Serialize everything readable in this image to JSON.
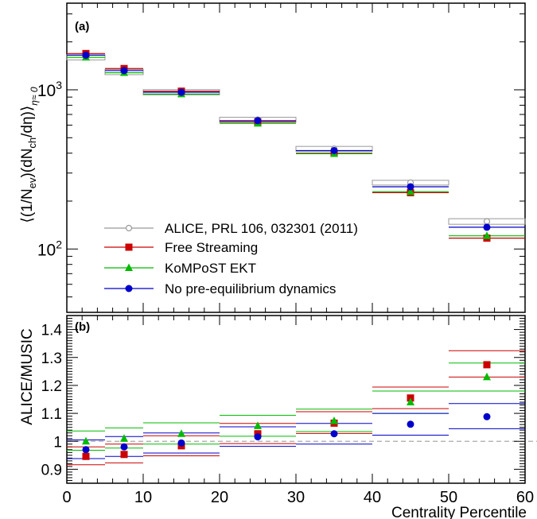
{
  "figure": {
    "colors": {
      "alice": "#999999",
      "free_streaming": "#cc0000",
      "kompost": "#00bb00",
      "no_preeq": "#0000cc",
      "reference_line": "#aaaaaa"
    }
  },
  "chart_data": [
    {
      "type": "scatter",
      "panel_label": "(a)",
      "ylabel": "⟨(1/N_ev)(dN_ch/dη)⟩_η≈0",
      "ylabel_parts": {
        "main": "⟨(1/N",
        "sub1": "ev",
        "mid": ")(dN",
        "sub2": "ch",
        "tail": "/dη)⟩",
        "sub3": "η≈ 0"
      },
      "yscale": "log",
      "ylim": [
        40,
        3500
      ],
      "xlim": [
        0,
        60
      ],
      "y_tick_labels": [
        {
          "value": 100,
          "base": "10",
          "exp": "2"
        },
        {
          "value": 1000,
          "base": "10",
          "exp": "3"
        }
      ],
      "bins": [
        [
          0,
          5
        ],
        [
          5,
          10
        ],
        [
          10,
          20
        ],
        [
          20,
          30
        ],
        [
          30,
          40
        ],
        [
          40,
          50
        ],
        [
          50,
          60
        ]
      ],
      "x": [
        2.5,
        7.5,
        15,
        25,
        35,
        45,
        55
      ],
      "series": [
        {
          "name": "ALICE, PRL 106, 032301 (2011)",
          "color": "#999999",
          "marker": "open-circle",
          "style": "box",
          "values": [
            1601,
            1294,
            966,
            649,
            426,
            261,
            149
          ],
          "errors": [
            60,
            49,
            37,
            23,
            15,
            9,
            6
          ]
        },
        {
          "name": "Free Streaming",
          "color": "#cc0000",
          "marker": "square",
          "style": "line",
          "values": [
            1690,
            1360,
            980,
            630,
            400,
            226,
            117
          ]
        },
        {
          "name": "KoMPoST EKT",
          "color": "#00bb00",
          "marker": "triangle",
          "style": "line",
          "values": [
            1600,
            1280,
            940,
            615,
            397,
            229,
            121
          ]
        },
        {
          "name": "No pre-equilibrium dynamics",
          "color": "#0000cc",
          "marker": "circle",
          "style": "line",
          "values": [
            1650,
            1320,
            965,
            640,
            415,
            246,
            137
          ]
        }
      ],
      "legend": {
        "placement": "bottom-left"
      }
    },
    {
      "type": "scatter",
      "panel_label": "(b)",
      "ylabel": "ALICE/MUSIC",
      "xlabel": "Centrality Percentile",
      "ylim": [
        0.85,
        1.45
      ],
      "xlim": [
        0,
        60
      ],
      "y_ticks": [
        "0.9",
        "1",
        "1.1",
        "1.2",
        "1.3",
        "1.4"
      ],
      "x_ticks": [
        "0",
        "10",
        "20",
        "30",
        "40",
        "50",
        "60"
      ],
      "reference_line": 1,
      "bins": [
        [
          0,
          5
        ],
        [
          5,
          10
        ],
        [
          10,
          20
        ],
        [
          20,
          30
        ],
        [
          30,
          40
        ],
        [
          40,
          50
        ],
        [
          50,
          60
        ]
      ],
      "x": [
        2.5,
        7.5,
        15,
        25,
        35,
        45,
        55
      ],
      "series": [
        {
          "name": "Free Streaming",
          "color": "#cc0000",
          "marker": "square",
          "values": [
            0.946,
            0.953,
            0.984,
            1.027,
            1.065,
            1.155,
            1.274
          ],
          "band_low": [
            0.916,
            0.923,
            0.948,
            0.992,
            1.028,
            1.117,
            1.23
          ],
          "band_high": [
            0.98,
            0.99,
            1.02,
            1.064,
            1.106,
            1.194,
            1.324
          ]
        },
        {
          "name": "KoMPoST EKT",
          "color": "#00bb00",
          "marker": "triangle",
          "values": [
            1.0,
            1.01,
            1.027,
            1.055,
            1.073,
            1.14,
            1.23
          ],
          "band_low": [
            0.968,
            0.976,
            0.99,
            1.018,
            1.035,
            1.1,
            1.18
          ],
          "band_high": [
            1.037,
            1.048,
            1.066,
            1.093,
            1.115,
            1.18,
            1.28
          ]
        },
        {
          "name": "No pre-equilibrium dynamics",
          "color": "#0000cc",
          "marker": "circle",
          "values": [
            0.97,
            0.98,
            0.994,
            1.016,
            1.027,
            1.061,
            1.088
          ],
          "band_low": [
            0.938,
            0.946,
            0.958,
            0.982,
            0.99,
            1.022,
            1.045
          ],
          "band_high": [
            1.005,
            1.017,
            1.03,
            1.052,
            1.064,
            1.1,
            1.135
          ]
        }
      ]
    }
  ]
}
